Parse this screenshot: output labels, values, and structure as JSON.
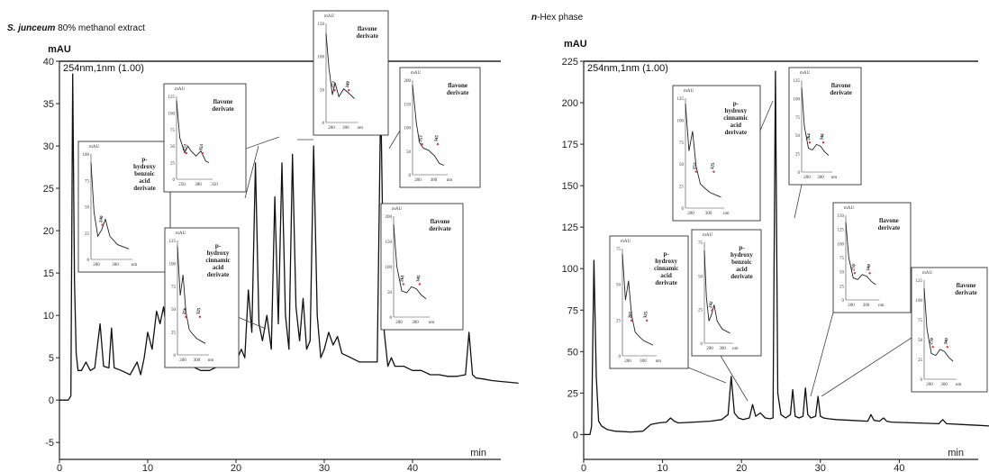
{
  "chart_data": [
    {
      "type": "line",
      "title_italic": "S. junceum",
      "title_rest": " 80% methanol extract",
      "ylabel": "mAU",
      "xlabel": "min",
      "wavelength": "254nm,1nm (1.00)",
      "xlim": [
        0,
        50
      ],
      "ylim": [
        -7,
        40
      ],
      "xticks": [
        0,
        10,
        20,
        30,
        40
      ],
      "yticks": [
        -5,
        0,
        5,
        10,
        15,
        20,
        25,
        30,
        35,
        40
      ],
      "series": [
        {
          "x": [
            0,
            1.0,
            1.3,
            1.5,
            1.7,
            1.9,
            2.1,
            2.5,
            3.0,
            3.5,
            4.0,
            4.6,
            5.0,
            5.6,
            5.9,
            6.2,
            7.0,
            8.0,
            8.8,
            9.2,
            9.6,
            10.0,
            10.5,
            11.0,
            11.4,
            11.8,
            12.3,
            12.8,
            13.2,
            13.6,
            14.0,
            15.0,
            16.0,
            17.0,
            18.0,
            19.0,
            19.5,
            20.0,
            20.6,
            21.0,
            21.4,
            21.8,
            22.2,
            22.6,
            23.0,
            23.5,
            24.0,
            24.4,
            24.8,
            25.2,
            25.6,
            26.0,
            26.4,
            26.8,
            27.2,
            27.6,
            28.0,
            28.4,
            28.8,
            29.2,
            29.6,
            30.0,
            30.5,
            31.0,
            31.5,
            32.0,
            33.0,
            34.0,
            35.0,
            36.0,
            36.4,
            36.8,
            37.2,
            37.6,
            38.0,
            39.0,
            40.0,
            41.0,
            42.0,
            43.0,
            44.0,
            45.0,
            46.0,
            46.4,
            46.8,
            47.2,
            48.0,
            49.0,
            50.0,
            51.0,
            52.0
          ],
          "values": [
            0,
            0,
            0.5,
            38.5,
            14,
            5.5,
            3.5,
            3.5,
            4.5,
            3.5,
            3.8,
            9,
            4,
            3.8,
            8.5,
            3.8,
            3.5,
            3.0,
            4.5,
            3,
            5,
            8,
            6,
            10.5,
            9,
            11,
            7,
            6,
            8,
            5,
            4.5,
            4,
            3.5,
            3.5,
            4,
            5.5,
            4,
            4.5,
            6,
            5,
            13,
            8,
            28,
            9,
            7,
            10,
            6,
            24,
            9,
            28,
            10,
            6,
            29,
            11,
            7,
            12,
            6,
            7,
            30,
            10,
            5,
            6,
            8,
            6.5,
            7.5,
            5.5,
            5,
            4.5,
            4.5,
            4.5,
            36,
            8,
            4,
            5,
            4,
            4,
            3.5,
            3.5,
            3,
            3,
            2.8,
            2.8,
            3,
            8,
            3,
            2.6,
            2.5,
            2.3,
            2.2,
            2.1,
            2.0
          ]
        }
      ],
      "insets": [
        {
          "labels": [
            "p-",
            "hydroxy",
            "benzoic",
            "acid",
            "derivate"
          ],
          "peaks": [
            "240"
          ],
          "xticks": [
            "200",
            "300",
            "nm"
          ],
          "yticks": [
            "0",
            "25",
            "50",
            "75",
            "100"
          ]
        },
        {
          "labels": [
            "flavone",
            "derivate"
          ],
          "peaks": [
            "272",
            "353"
          ],
          "xticks": [
            "250",
            "300",
            "350"
          ],
          "yticks": [
            "0",
            "25",
            "50",
            "75",
            "100",
            "125"
          ]
        },
        {
          "labels": [
            "p-",
            "hydroxy",
            "cinnamic",
            "acid",
            "derivate"
          ],
          "peaks": [
            "256",
            "325"
          ],
          "xticks": [
            "200",
            "300",
            "nm"
          ],
          "yticks": [
            "0",
            "25",
            "50",
            "75",
            "100",
            "125"
          ]
        },
        {
          "labels": [
            "flavone",
            "derivate"
          ],
          "peaks": [
            "272",
            "349"
          ],
          "xticks": [
            "200",
            "300",
            "nm"
          ],
          "yticks": [
            "0",
            "50",
            "100",
            "150"
          ]
        },
        {
          "labels": [
            "flavone",
            "derivate"
          ],
          "peaks": [
            "257",
            "345"
          ],
          "xticks": [
            "200",
            "300",
            "nm"
          ],
          "yticks": [
            "0",
            "50",
            "100",
            "150",
            "200"
          ]
        },
        {
          "labels": [
            "flavone",
            "derivate"
          ],
          "peaks": [
            "261",
            "345"
          ],
          "xticks": [
            "200",
            "300",
            "nm"
          ],
          "yticks": [
            "0",
            "50",
            "100",
            "150",
            "200"
          ]
        }
      ]
    },
    {
      "type": "line",
      "title_italic": "n",
      "title_rest": "-Hex phase",
      "ylabel": "mAU",
      "xlabel": "min",
      "wavelength": "254nm,1nm (1.00)",
      "xlim": [
        0,
        50
      ],
      "ylim": [
        -15,
        225
      ],
      "xticks": [
        0,
        10,
        20,
        30,
        40
      ],
      "yticks": [
        0,
        25,
        50,
        75,
        100,
        125,
        150,
        175,
        200,
        225
      ],
      "series": [
        {
          "x": [
            0,
            0.8,
            1.0,
            1.3,
            1.6,
            1.9,
            2.3,
            3,
            4,
            6,
            7.5,
            8.5,
            9.5,
            10.5,
            11,
            11.5,
            12,
            14,
            16,
            17.5,
            18.3,
            18.7,
            19.1,
            19.6,
            20.2,
            21.0,
            21.4,
            21.8,
            22.4,
            23,
            23.6,
            24.0,
            24.3,
            24.6,
            25.0,
            25.6,
            26.2,
            26.5,
            26.8,
            27.3,
            27.8,
            28.1,
            28.4,
            28.8,
            29.4,
            29.7,
            30.0,
            30.4,
            31,
            32,
            34,
            36,
            36.4,
            36.8,
            37.5,
            38.0,
            38.4,
            39,
            42,
            45,
            45.5,
            46,
            48,
            50,
            52
          ],
          "values": [
            0,
            0,
            5,
            105,
            35,
            8,
            5,
            3,
            2,
            1.5,
            2,
            6,
            7,
            7.5,
            10,
            8,
            7,
            7.5,
            8,
            9,
            12,
            35,
            13,
            10,
            9,
            10,
            18,
            11,
            13,
            10,
            9.5,
            10,
            219,
            25,
            12,
            10,
            12,
            27,
            11,
            10,
            11,
            28,
            12,
            10,
            11,
            23,
            11,
            10,
            9.5,
            9,
            8.5,
            8,
            12,
            8.5,
            8,
            10,
            8,
            7.5,
            7,
            6.5,
            9,
            6.5,
            6,
            5.5,
            5
          ]
        }
      ],
      "insets": [
        {
          "labels": [
            "p-",
            "hydroxy",
            "cinnamic",
            "acid",
            "derivate"
          ],
          "peaks": [
            "257",
            "325"
          ],
          "xticks": [
            "200",
            "300",
            "nm"
          ],
          "yticks": [
            "0",
            "25",
            "50",
            "75",
            "100",
            "125"
          ]
        },
        {
          "labels": [
            "flavone",
            "derivate"
          ],
          "peaks": [
            "264",
            "346"
          ],
          "xticks": [
            "200",
            "300",
            "nm"
          ],
          "yticks": [
            "0",
            "25",
            "50",
            "75",
            "100",
            "125"
          ]
        },
        {
          "labels": [
            "p-",
            "hydroxy",
            "cinnamic",
            "acid",
            "derivate"
          ],
          "peaks": [
            "265",
            "325"
          ],
          "xticks": [
            "200",
            "300",
            "nm"
          ],
          "yticks": [
            "0",
            "25",
            "50",
            "75"
          ]
        },
        {
          "labels": [
            "p-",
            "hydroxy",
            "benzoic",
            "acid",
            "derivate"
          ],
          "peaks": [
            "242"
          ],
          "xticks": [
            "200",
            "300",
            "nm"
          ],
          "yticks": [
            "0",
            "25",
            "50",
            "75"
          ]
        },
        {
          "labels": [
            "flavone",
            "derivate"
          ],
          "peaks": [
            "270",
            "340"
          ],
          "xticks": [
            "200",
            "300",
            "nm"
          ],
          "yticks": [
            "0",
            "25",
            "50",
            "75",
            "100",
            "125",
            "150"
          ]
        },
        {
          "labels": [
            "flavone",
            "derivate"
          ],
          "peaks": [
            "270",
            "340"
          ],
          "xticks": [
            "200",
            "300",
            "nm"
          ],
          "yticks": [
            "0",
            "25",
            "50",
            "75",
            "100",
            "125"
          ]
        }
      ]
    }
  ]
}
